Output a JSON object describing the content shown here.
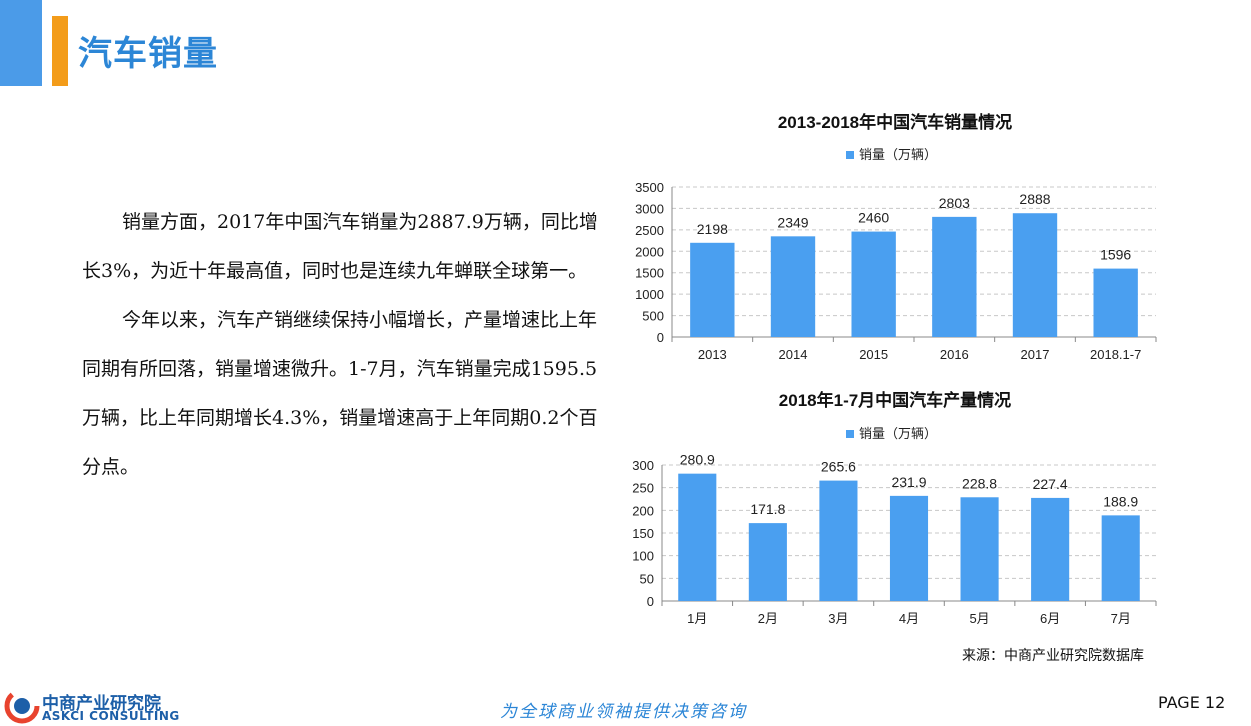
{
  "header": {
    "title": "汽车销量"
  },
  "body": {
    "paragraph1": "销量方面，2017年中国汽车销量为2887.9万辆，同比增长3%，为近十年最高值，同时也是连续九年蝉联全球第一。",
    "paragraph2": "今年以来，汽车产销继续保持小幅增长，产量增速比上年同期有所回落，销量增速微升。1-7月，汽车销量完成1595.5万辆，比上年同期增长4.3%，销量增速高于上年同期0.2个百分点。"
  },
  "chart_data": [
    {
      "type": "bar",
      "title": "2013-2018年中国汽车销量情况",
      "categories": [
        "2013",
        "2014",
        "2015",
        "2016",
        "2017",
        "2018.1-7"
      ],
      "series": [
        {
          "name": "销量（万辆）",
          "values": [
            2198,
            2349,
            2460,
            2803,
            2888,
            1596
          ]
        }
      ],
      "ylim": [
        0,
        3500
      ],
      "yticks": [
        0,
        500,
        1000,
        1500,
        2000,
        2500,
        3000,
        3500
      ],
      "grid": true,
      "legend": "top",
      "color": "#4a9ff0"
    },
    {
      "type": "bar",
      "title": "2018年1-7月中国汽车产量情况",
      "categories": [
        "1月",
        "2月",
        "3月",
        "4月",
        "5月",
        "6月",
        "7月"
      ],
      "series": [
        {
          "name": "销量（万辆）",
          "values": [
            280.9,
            171.8,
            265.6,
            231.9,
            228.8,
            227.4,
            188.9
          ]
        }
      ],
      "ylim": [
        0,
        300
      ],
      "yticks": [
        0,
        50,
        100,
        150,
        200,
        250,
        300
      ],
      "grid": true,
      "legend": "top",
      "color": "#4a9ff0"
    }
  ],
  "footer": {
    "source": "来源：中商产业研究院数据库",
    "logo_cn": "中商产业研究院",
    "logo_en": "ASKCI CONSULTING",
    "slogan": "为全球商业领袖提供决策咨询",
    "page": "PAGE 12"
  }
}
